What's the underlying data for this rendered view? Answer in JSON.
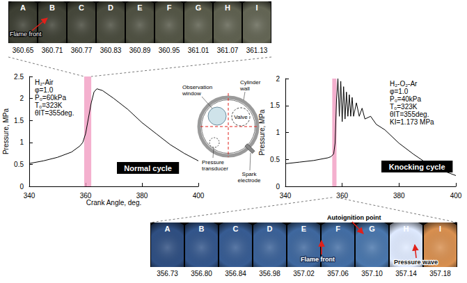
{
  "chart_data": [
    {
      "type": "line",
      "annotations": [
        "H₂-Air",
        "φ=1.0",
        "P₀=60kPa",
        "T₀=323K",
        "θIT=355deg."
      ],
      "tag": "Normal cycle",
      "x": [
        340,
        345,
        350,
        355,
        358,
        359,
        360,
        361,
        362,
        363,
        364,
        366,
        370,
        375,
        380,
        385,
        390,
        395,
        400
      ],
      "values": [
        0.52,
        0.58,
        0.66,
        0.78,
        0.92,
        1.0,
        1.2,
        1.55,
        1.9,
        2.15,
        2.22,
        2.18,
        2.0,
        1.75,
        1.45,
        1.2,
        0.95,
        0.75,
        0.58
      ],
      "color": "#000000",
      "highlight": [
        359.5,
        362
      ],
      "x_label": "Crank Angle, deg.",
      "y_label": "Pressure, MPa",
      "xlim": [
        340,
        400
      ],
      "xticks": [
        340,
        360,
        380,
        400
      ],
      "ylim": [
        0,
        2.5
      ],
      "yticks": [
        0,
        0.5,
        1,
        1.5,
        2,
        2.5
      ],
      "grid": false
    },
    {
      "type": "line",
      "annotations": [
        "H₂-O₂-Ar",
        "φ=1.0",
        "P₀=40kPa",
        "T₀=323K",
        "θIT=355deg.",
        "KI=1.173 MPa"
      ],
      "tag": "Knocking cycle",
      "x": [
        340,
        345,
        350,
        355,
        356,
        357,
        357.5,
        358,
        358.5,
        359,
        359.5,
        360,
        360.5,
        361,
        361.5,
        362,
        362.5,
        363,
        363.5,
        364,
        365,
        366,
        367,
        368,
        370,
        372,
        375,
        380,
        385,
        390,
        395,
        400
      ],
      "values": [
        0.42,
        0.45,
        0.48,
        0.53,
        0.55,
        0.6,
        0.8,
        1.6,
        2.0,
        1.3,
        1.95,
        1.2,
        1.85,
        1.25,
        1.75,
        1.3,
        1.7,
        1.3,
        1.65,
        1.3,
        1.55,
        1.3,
        1.45,
        1.25,
        1.3,
        1.15,
        1.05,
        0.8,
        0.6,
        0.42,
        0.3,
        0.2
      ],
      "color": "#000000",
      "highlight": [
        356.5,
        358
      ],
      "y_label": "Pressure, MPa",
      "xlim": [
        340,
        400
      ],
      "xticks": [
        340,
        360,
        380,
        400
      ],
      "ylim": [
        0,
        2
      ],
      "yticks": [
        0,
        0.5,
        1,
        1.5,
        2
      ],
      "grid": false
    }
  ],
  "image_strips": [
    {
      "letters": [
        "A",
        "B",
        "C",
        "D",
        "E",
        "F",
        "G",
        "H",
        "I"
      ],
      "crank_angles": [
        "360.65",
        "360.71",
        "360.77",
        "360.83",
        "360.89",
        "360.95",
        "361.01",
        "361.07",
        "361.13"
      ],
      "colors": [
        "#3d3f33",
        "#404236",
        "#45473a",
        "#4a4c3e",
        "#4f5142",
        "#545646",
        "#5a5c4b",
        "#5f6150",
        "#646655"
      ],
      "annotations": [
        "Flame front"
      ]
    },
    {
      "letters": [
        "A",
        "B",
        "C",
        "D",
        "E",
        "F",
        "G",
        "H",
        "I"
      ],
      "crank_angles": [
        "356.73",
        "356.80",
        "356.84",
        "356.98",
        "357.02",
        "357.06",
        "357.10",
        "357.14",
        "357.18"
      ],
      "colors": [
        "#2f4f82",
        "#33568c",
        "#375c93",
        "#3b6299",
        "#3f689f",
        "#436ea5",
        "#4a77ad",
        "#dfeaff",
        "#d99050"
      ],
      "annotations": [
        "Autoignition point",
        "Flame front",
        "Pressure wave"
      ]
    }
  ],
  "diagram": {
    "observation_window": "Observation window",
    "cylinder_wall": "Cylinder wall",
    "valve": "Valve",
    "pressure_transducer": "Pressure transducer",
    "spark_electrode": "Spark electrode"
  }
}
